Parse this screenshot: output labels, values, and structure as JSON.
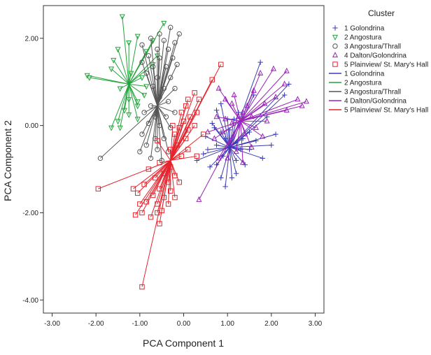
{
  "chart_data": {
    "type": "scatter",
    "xlabel": "PCA Component 1",
    "ylabel": "PCA Component 2",
    "xlim": [
      -3.2,
      3.2
    ],
    "ylim": [
      -4.3,
      2.75
    ],
    "x_ticks": [
      -3,
      -2,
      -1,
      0,
      1,
      2,
      3
    ],
    "x_tick_labels": [
      "-3.00",
      "-2.00",
      "-1.00",
      "0.00",
      "1.00",
      "2.00",
      "3.00"
    ],
    "y_ticks": [
      2,
      0,
      -2,
      -4
    ],
    "y_tick_labels": [
      "2.00",
      "0.00",
      "-2.00",
      "-4.00"
    ],
    "grid": false,
    "legend": {
      "title": "Cluster",
      "placement": "right",
      "marker_entries": [
        {
          "label": "1 Golondrina",
          "marker": "plus",
          "color": "#3a3ab5"
        },
        {
          "label": "2 Angostura",
          "marker": "triangle-down",
          "color": "#22a33a"
        },
        {
          "label": "3 Angostura/Thrall",
          "marker": "circle",
          "color": "#555555"
        },
        {
          "label": "4 Dalton/Golondrina",
          "marker": "triangle-up",
          "color": "#9a22b8"
        },
        {
          "label": "5 Plainview/ St. Mary's Hall",
          "marker": "square",
          "color": "#e6232c"
        }
      ],
      "line_entries": [
        {
          "label": "1 Golondrina",
          "color": "#3a3ab5"
        },
        {
          "label": "2 Angostura",
          "color": "#22a33a"
        },
        {
          "label": "3 Angostura/Thrall",
          "color": "#555555"
        },
        {
          "label": "4 Dalton/Golondrina",
          "color": "#9a22b8"
        },
        {
          "label": "5 Plainview/ St. Mary's Hall",
          "color": "#e6232c"
        }
      ]
    },
    "series": [
      {
        "name": "1 Golondrina",
        "marker": "plus",
        "color": "#3a3ab5",
        "centroid": [
          1.05,
          -0.5
        ],
        "points": [
          [
            1.75,
            1.45
          ],
          [
            1.6,
            0.7
          ],
          [
            2.4,
            0.95
          ],
          [
            2.3,
            0.7
          ],
          [
            1.9,
            0.2
          ],
          [
            2.1,
            -0.2
          ],
          [
            2.0,
            -0.45
          ],
          [
            1.8,
            -0.75
          ],
          [
            1.5,
            -0.55
          ],
          [
            1.5,
            -0.15
          ],
          [
            1.35,
            -0.3
          ],
          [
            1.2,
            -0.8
          ],
          [
            1.2,
            -1.1
          ],
          [
            0.95,
            -1.4
          ],
          [
            0.85,
            -1.2
          ],
          [
            0.9,
            -0.7
          ],
          [
            0.75,
            -0.45
          ],
          [
            0.55,
            -0.55
          ],
          [
            0.45,
            -0.65
          ],
          [
            0.3,
            -0.8
          ],
          [
            0.6,
            -0.95
          ],
          [
            1.05,
            -0.1
          ],
          [
            1.15,
            0.15
          ],
          [
            1.0,
            0.15
          ],
          [
            0.85,
            0.5
          ],
          [
            0.75,
            0.35
          ],
          [
            0.7,
            -0.05
          ],
          [
            1.3,
            -0.55
          ],
          [
            1.4,
            -0.9
          ],
          [
            1.1,
            -1.2
          ],
          [
            0.75,
            -0.9
          ],
          [
            0.95,
            -0.3
          ],
          [
            1.25,
            0.3
          ],
          [
            1.65,
            -0.35
          ],
          [
            0.5,
            -0.25
          ],
          [
            0.65,
            0.05
          ],
          [
            1.2,
            -0.4
          ],
          [
            0.85,
            -0.15
          ]
        ]
      },
      {
        "name": "2 Angostura",
        "marker": "triangle-down",
        "color": "#22a33a",
        "centroid": [
          -1.25,
          0.95
        ],
        "points": [
          [
            -1.4,
            2.5
          ],
          [
            -0.45,
            2.35
          ],
          [
            -1.05,
            2.05
          ],
          [
            -1.25,
            1.9
          ],
          [
            -0.7,
            1.95
          ],
          [
            -1.5,
            1.75
          ],
          [
            -1.6,
            1.5
          ],
          [
            -1.65,
            1.3
          ],
          [
            -0.85,
            1.7
          ],
          [
            -0.6,
            1.6
          ],
          [
            -0.7,
            1.4
          ],
          [
            -1.2,
            1.2
          ],
          [
            -0.95,
            1.1
          ],
          [
            -2.2,
            1.15
          ],
          [
            -2.15,
            1.1
          ],
          [
            -1.45,
            0.85
          ],
          [
            -1.25,
            0.6
          ],
          [
            -1.05,
            0.55
          ],
          [
            -0.85,
            0.9
          ],
          [
            -1.05,
            0.45
          ],
          [
            -1.35,
            0.35
          ],
          [
            -1.25,
            0.25
          ],
          [
            -1.05,
            0.15
          ],
          [
            -1.5,
            0.1
          ],
          [
            -1.65,
            -0.05
          ],
          [
            -1.45,
            -0.05
          ],
          [
            -0.9,
            0.7
          ]
        ]
      },
      {
        "name": "3 Angostura/Thrall",
        "marker": "circle",
        "color": "#555555",
        "centroid": [
          -0.6,
          0.45
        ],
        "points": [
          [
            -0.3,
            2.25
          ],
          [
            -0.55,
            2.1
          ],
          [
            -0.1,
            2.1
          ],
          [
            -0.75,
            2.0
          ],
          [
            -0.45,
            1.95
          ],
          [
            -0.2,
            1.9
          ],
          [
            -0.95,
            1.85
          ],
          [
            -0.6,
            1.75
          ],
          [
            -0.35,
            1.75
          ],
          [
            -0.8,
            1.6
          ],
          [
            -0.55,
            1.55
          ],
          [
            -0.25,
            1.55
          ],
          [
            -0.95,
            1.45
          ],
          [
            -0.7,
            1.35
          ],
          [
            -0.4,
            1.35
          ],
          [
            -0.15,
            1.4
          ],
          [
            -0.85,
            1.2
          ],
          [
            -0.6,
            1.1
          ],
          [
            -0.3,
            1.1
          ],
          [
            -0.7,
            0.9
          ],
          [
            -0.45,
            0.85
          ],
          [
            -0.2,
            0.85
          ],
          [
            -0.55,
            0.65
          ],
          [
            -0.35,
            0.55
          ],
          [
            -0.75,
            0.45
          ],
          [
            -0.9,
            0.3
          ],
          [
            -0.65,
            0.2
          ],
          [
            -0.4,
            0.2
          ],
          [
            -0.8,
            0.05
          ],
          [
            -0.55,
            0.0
          ],
          [
            -0.3,
            -0.05
          ],
          [
            -0.95,
            -0.2
          ],
          [
            -0.65,
            -0.3
          ],
          [
            -0.45,
            -0.3
          ],
          [
            -0.85,
            -0.45
          ],
          [
            -0.6,
            -0.55
          ],
          [
            -0.35,
            -0.6
          ],
          [
            -1.0,
            -0.6
          ],
          [
            -0.75,
            -0.75
          ],
          [
            -1.9,
            -0.75
          ],
          [
            -0.5,
            -0.8
          ],
          [
            -0.2,
            0.3
          ]
        ]
      },
      {
        "name": "4 Dalton/Golondrina",
        "marker": "triangle-up",
        "color": "#9a22b8",
        "centroid": [
          1.3,
          0.1
        ],
        "points": [
          [
            2.8,
            0.55
          ],
          [
            2.6,
            0.6
          ],
          [
            2.7,
            0.45
          ],
          [
            2.35,
            1.25
          ],
          [
            2.05,
            1.3
          ],
          [
            2.3,
            0.95
          ],
          [
            1.75,
            1.2
          ],
          [
            1.6,
            0.8
          ],
          [
            2.1,
            0.65
          ],
          [
            2.35,
            0.35
          ],
          [
            1.85,
            0.5
          ],
          [
            0.8,
            0.85
          ],
          [
            0.95,
            0.6
          ],
          [
            1.1,
            0.5
          ],
          [
            1.45,
            0.45
          ],
          [
            1.35,
            0.3
          ],
          [
            1.55,
            0.2
          ],
          [
            1.9,
            0.1
          ],
          [
            1.65,
            -0.05
          ],
          [
            1.8,
            -0.25
          ],
          [
            1.4,
            -0.2
          ],
          [
            1.25,
            0.2
          ],
          [
            1.1,
            0.05
          ],
          [
            0.95,
            0.15
          ],
          [
            0.75,
            0.2
          ],
          [
            0.9,
            -0.15
          ],
          [
            0.7,
            -0.3
          ],
          [
            0.55,
            -0.15
          ],
          [
            1.05,
            -0.4
          ],
          [
            1.2,
            -0.6
          ],
          [
            0.8,
            -0.75
          ],
          [
            1.0,
            -0.75
          ],
          [
            1.35,
            -0.85
          ],
          [
            1.55,
            -0.5
          ],
          [
            0.35,
            -1.7
          ],
          [
            1.15,
            0.7
          ]
        ]
      },
      {
        "name": "5 Plainview/ St. Mary's Hall",
        "marker": "square",
        "color": "#e6232c",
        "centroid": [
          -0.3,
          -0.8
        ],
        "points": [
          [
            0.85,
            1.4
          ],
          [
            0.65,
            1.05
          ],
          [
            0.25,
            0.75
          ],
          [
            0.35,
            0.6
          ],
          [
            0.1,
            0.6
          ],
          [
            0.05,
            0.45
          ],
          [
            0.3,
            0.3
          ],
          [
            0.15,
            0.2
          ],
          [
            -0.05,
            0.3
          ],
          [
            0.0,
            0.1
          ],
          [
            0.25,
            0.0
          ],
          [
            0.1,
            -0.1
          ],
          [
            -0.1,
            -0.05
          ],
          [
            -0.2,
            -0.2
          ],
          [
            0.05,
            -0.3
          ],
          [
            -0.15,
            -0.45
          ],
          [
            0.1,
            -0.55
          ],
          [
            -0.3,
            -0.55
          ],
          [
            -0.05,
            -0.7
          ],
          [
            0.3,
            -0.7
          ],
          [
            -0.55,
            -0.85
          ],
          [
            -0.3,
            -0.95
          ],
          [
            -0.8,
            -1.0
          ],
          [
            -0.45,
            -1.1
          ],
          [
            -0.2,
            -1.15
          ],
          [
            -0.65,
            -1.2
          ],
          [
            -0.35,
            -1.3
          ],
          [
            -0.1,
            -1.3
          ],
          [
            -0.9,
            -1.35
          ],
          [
            -0.55,
            -1.45
          ],
          [
            -0.3,
            -1.5
          ],
          [
            -1.05,
            -1.55
          ],
          [
            -0.7,
            -1.6
          ],
          [
            -0.45,
            -1.65
          ],
          [
            -0.2,
            -1.65
          ],
          [
            -0.85,
            -1.75
          ],
          [
            -0.6,
            -1.8
          ],
          [
            -0.35,
            -1.8
          ],
          [
            -0.5,
            -1.95
          ],
          [
            -0.75,
            -2.1
          ],
          [
            -0.55,
            -2.25
          ],
          [
            -1.0,
            -1.8
          ],
          [
            -0.6,
            -2.0
          ],
          [
            -0.95,
            -2.0
          ],
          [
            -1.1,
            -2.05
          ],
          [
            -1.95,
            -1.45
          ],
          [
            -1.15,
            -1.45
          ],
          [
            -0.95,
            -3.7
          ],
          [
            -0.6,
            -0.35
          ],
          [
            0.45,
            -0.2
          ],
          [
            -0.25,
            0.0
          ]
        ]
      }
    ]
  }
}
